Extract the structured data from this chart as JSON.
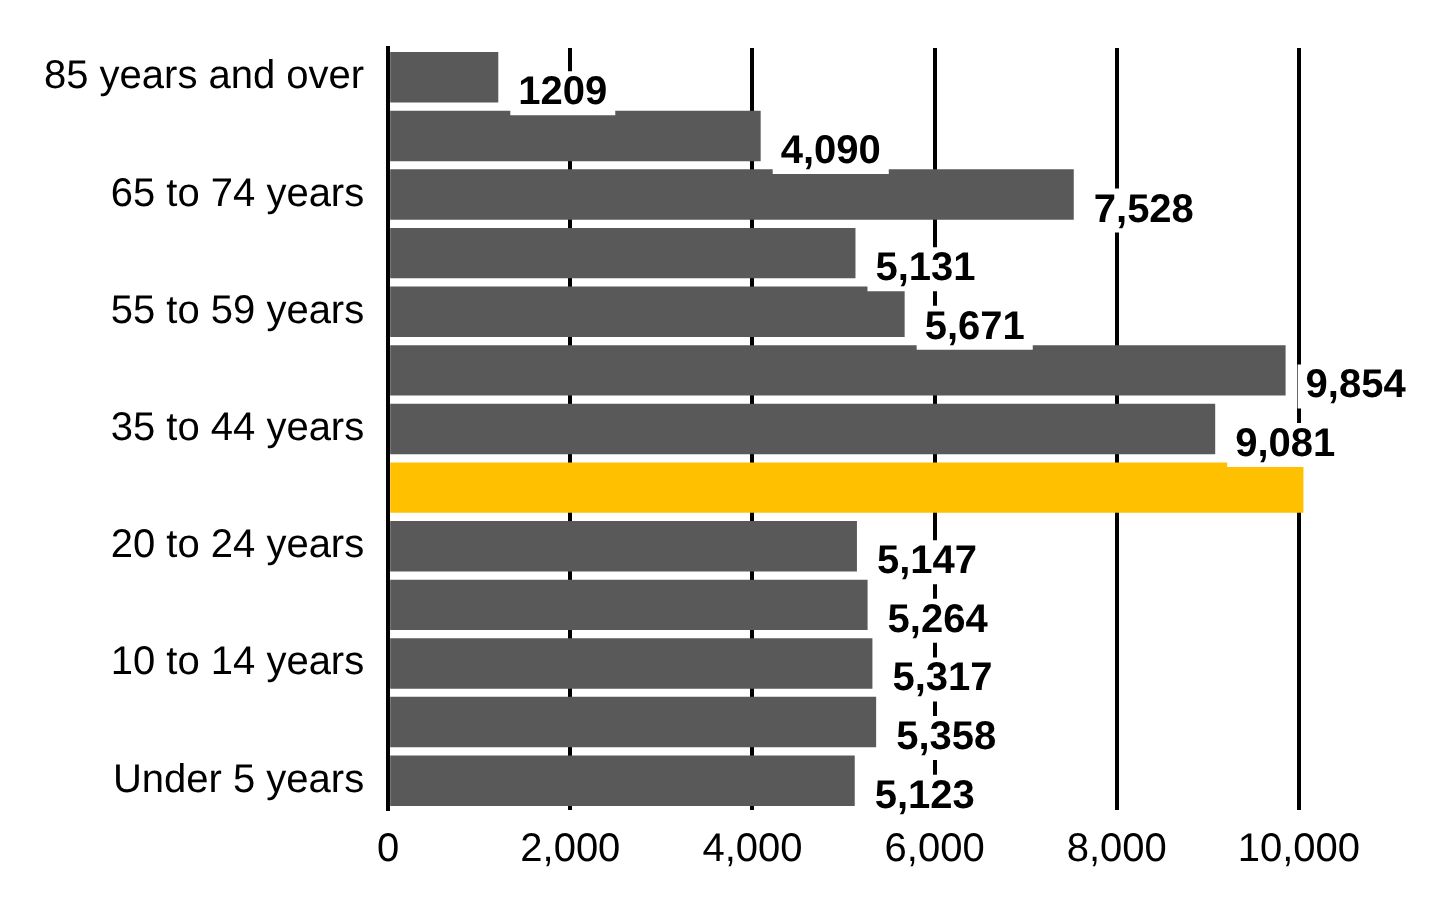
{
  "chart_data": {
    "type": "bar",
    "orientation": "horizontal",
    "categories": [
      "85 years and over",
      null,
      "65 to 74 years",
      null,
      "55 to 59 years",
      null,
      "35 to 44 years",
      null,
      "20 to 24 years",
      null,
      "10 to 14 years",
      null,
      "Under 5 years"
    ],
    "values": [
      1209,
      4090,
      7528,
      5131,
      5671,
      9854,
      9081,
      10050,
      5147,
      5264,
      5317,
      5358,
      5123
    ],
    "colors": [
      "#595959",
      "#595959",
      "#595959",
      "#595959",
      "#595959",
      "#595959",
      "#595959",
      "#ffc000",
      "#595959",
      "#595959",
      "#595959",
      "#595959",
      "#595959"
    ],
    "value_labels": [
      "1209",
      "4,090",
      "7,528",
      "5,131",
      "5,671",
      "9,854",
      "9,081",
      null,
      "5,147",
      "5,264",
      "5,317",
      "5,358",
      "5,123"
    ],
    "xlim": [
      0,
      10100
    ],
    "xticks": [
      {
        "value": 0,
        "label": "0"
      },
      {
        "value": 2000,
        "label": "2,000"
      },
      {
        "value": 4000,
        "label": "4,000"
      },
      {
        "value": 6000,
        "label": "6,000"
      },
      {
        "value": 8000,
        "label": "8,000"
      },
      {
        "value": 10000,
        "label": "10,000"
      }
    ],
    "grid": "x",
    "legend": false
  }
}
